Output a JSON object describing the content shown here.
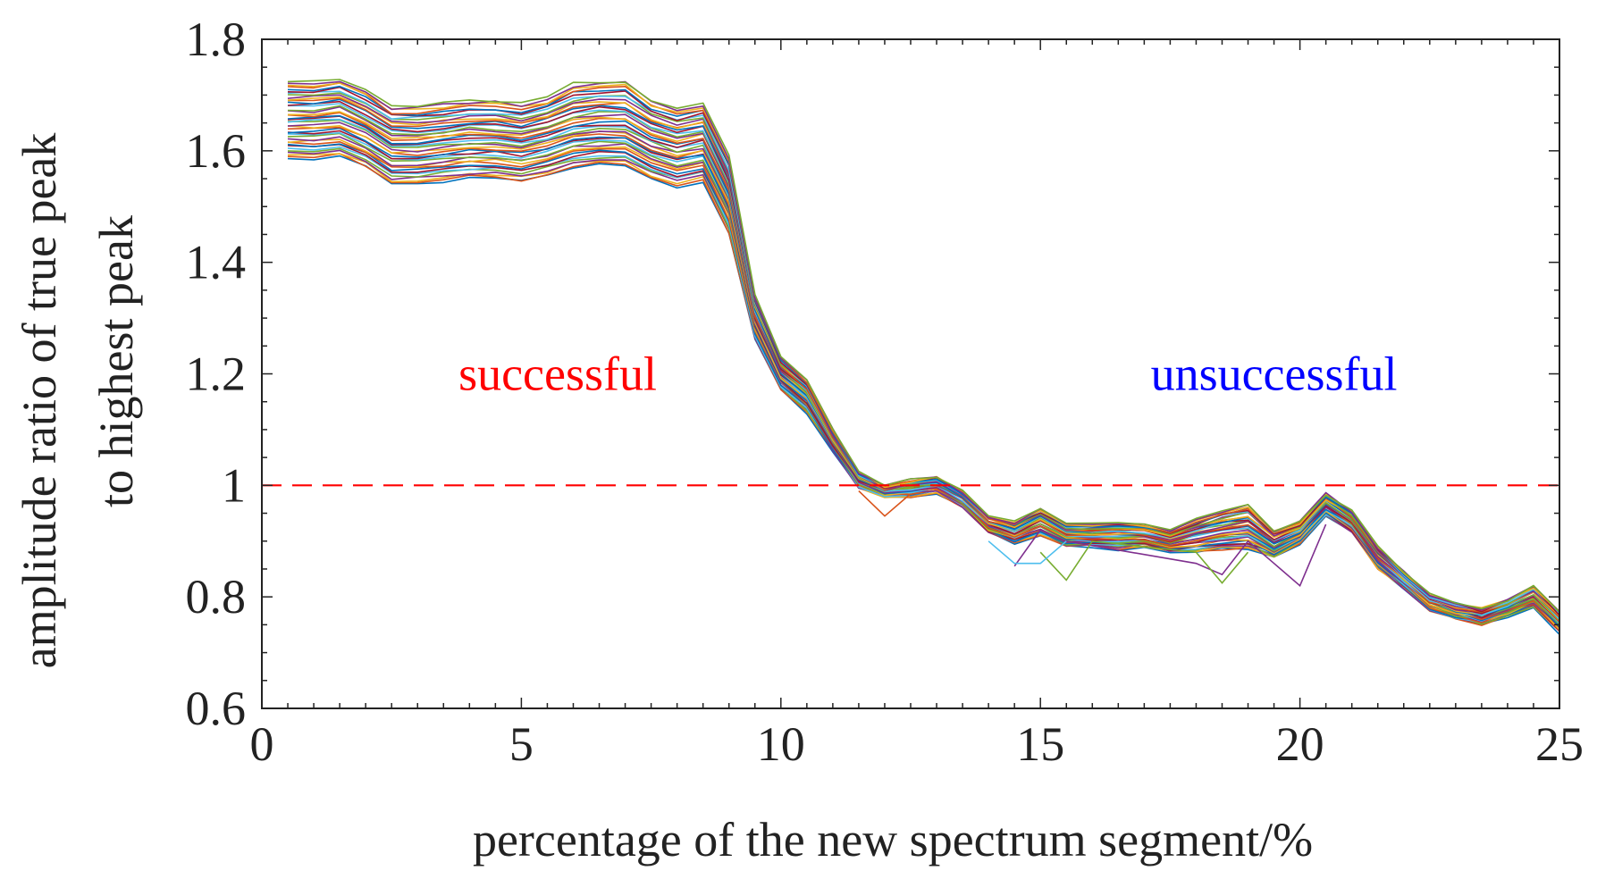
{
  "chart_data": {
    "type": "line",
    "xlabel": "percentage of the new spectrum segment/%",
    "ylabel_line1": "amplitude ratio of true peak",
    "ylabel_line2": "to highest peak",
    "xlim": [
      0,
      25
    ],
    "ylim": [
      0.6,
      1.8
    ],
    "xticks": [
      0,
      5,
      10,
      15,
      20,
      25
    ],
    "xtick_labels": [
      "0",
      "5",
      "10",
      "15",
      "20",
      "25"
    ],
    "yticks": [
      0.6,
      0.8,
      1.0,
      1.2,
      1.4,
      1.6,
      1.8
    ],
    "ytick_labels": [
      "0.6",
      "0.8",
      "1",
      "1.2",
      "1.4",
      "1.6",
      "1.8"
    ],
    "grid": false,
    "threshold": {
      "y": 1.0,
      "style": "dashed",
      "color": "#ff0000"
    },
    "annotations": [
      {
        "text": "successful",
        "x": 5.7,
        "y": 1.2,
        "color": "#ff0000"
      },
      {
        "text": "unsuccessful",
        "x": 19.5,
        "y": 1.2,
        "color": "#0000ff"
      }
    ],
    "series_count": 40,
    "series_description": "Family of curves from Monte Carlo trials; each series offset by a spread factor from the base curve.",
    "x": [
      0.5,
      1.0,
      1.5,
      2.0,
      2.5,
      3.0,
      3.5,
      4.0,
      4.5,
      5.0,
      5.5,
      6.0,
      6.5,
      7.0,
      7.5,
      8.0,
      8.5,
      9.0,
      9.5,
      10.0,
      10.5,
      11.0,
      11.5,
      12.0,
      12.5,
      13.0,
      13.5,
      14.0,
      14.5,
      15.0,
      15.5,
      16.0,
      16.5,
      17.0,
      17.5,
      18.0,
      18.5,
      19.0,
      19.5,
      20.0,
      20.5,
      21.0,
      21.5,
      22.0,
      22.5,
      23.0,
      23.5,
      24.0,
      24.5,
      25.0
    ],
    "base": [
      1.655,
      1.655,
      1.66,
      1.64,
      1.61,
      1.61,
      1.615,
      1.62,
      1.62,
      1.615,
      1.625,
      1.64,
      1.645,
      1.645,
      1.62,
      1.605,
      1.615,
      1.52,
      1.3,
      1.2,
      1.16,
      1.08,
      1.01,
      0.99,
      0.995,
      1.0,
      0.975,
      0.93,
      0.915,
      0.935,
      0.91,
      0.91,
      0.91,
      0.91,
      0.9,
      0.91,
      0.92,
      0.925,
      0.895,
      0.915,
      0.965,
      0.935,
      0.87,
      0.83,
      0.79,
      0.775,
      0.765,
      0.78,
      0.8,
      0.755
    ],
    "spread_upper": [
      0.07,
      0.07,
      0.07,
      0.07,
      0.07,
      0.07,
      0.07,
      0.07,
      0.07,
      0.07,
      0.07,
      0.08,
      0.08,
      0.08,
      0.07,
      0.07,
      0.07,
      0.07,
      0.04,
      0.03,
      0.03,
      0.02,
      0.015,
      0.01,
      0.015,
      0.015,
      0.015,
      0.015,
      0.02,
      0.025,
      0.02,
      0.02,
      0.025,
      0.02,
      0.02,
      0.03,
      0.035,
      0.04,
      0.025,
      0.02,
      0.02,
      0.02,
      0.02,
      0.015,
      0.015,
      0.015,
      0.015,
      0.015,
      0.02,
      0.02
    ],
    "spread_lower": [
      0.07,
      0.07,
      0.07,
      0.07,
      0.07,
      0.07,
      0.07,
      0.07,
      0.07,
      0.07,
      0.07,
      0.07,
      0.07,
      0.07,
      0.07,
      0.07,
      0.07,
      0.07,
      0.04,
      0.03,
      0.03,
      0.02,
      0.015,
      0.01,
      0.015,
      0.015,
      0.015,
      0.015,
      0.02,
      0.025,
      0.02,
      0.02,
      0.025,
      0.02,
      0.02,
      0.03,
      0.035,
      0.04,
      0.025,
      0.02,
      0.02,
      0.02,
      0.02,
      0.015,
      0.015,
      0.015,
      0.015,
      0.015,
      0.02,
      0.02
    ],
    "outlier_series": [
      {
        "name": "outlier-magenta",
        "color": "#7e2f8e",
        "points": [
          [
            14.5,
            0.855
          ],
          [
            15.0,
            0.92
          ],
          [
            15.5,
            0.9
          ],
          [
            18.0,
            0.86
          ],
          [
            18.5,
            0.84
          ],
          [
            19.0,
            0.9
          ],
          [
            19.5,
            0.86
          ],
          [
            20.0,
            0.82
          ],
          [
            20.5,
            0.93
          ]
        ]
      },
      {
        "name": "outlier-green",
        "color": "#77ac30",
        "points": [
          [
            15.0,
            0.88
          ],
          [
            15.5,
            0.83
          ],
          [
            16.0,
            0.9
          ],
          [
            18.0,
            0.88
          ],
          [
            18.5,
            0.825
          ],
          [
            19.0,
            0.88
          ]
        ]
      },
      {
        "name": "outlier-cyan",
        "color": "#4dbeee",
        "points": [
          [
            14.0,
            0.9
          ],
          [
            14.5,
            0.86
          ],
          [
            15.0,
            0.86
          ],
          [
            15.5,
            0.9
          ]
        ]
      },
      {
        "name": "outlier-red",
        "color": "#d95319",
        "points": [
          [
            11.5,
            0.99
          ],
          [
            12.0,
            0.945
          ],
          [
            12.5,
            0.985
          ]
        ]
      }
    ],
    "colors": [
      "#0072bd",
      "#d95319",
      "#edb120",
      "#7e2f8e",
      "#77ac30",
      "#4dbeee",
      "#a2142f"
    ]
  }
}
